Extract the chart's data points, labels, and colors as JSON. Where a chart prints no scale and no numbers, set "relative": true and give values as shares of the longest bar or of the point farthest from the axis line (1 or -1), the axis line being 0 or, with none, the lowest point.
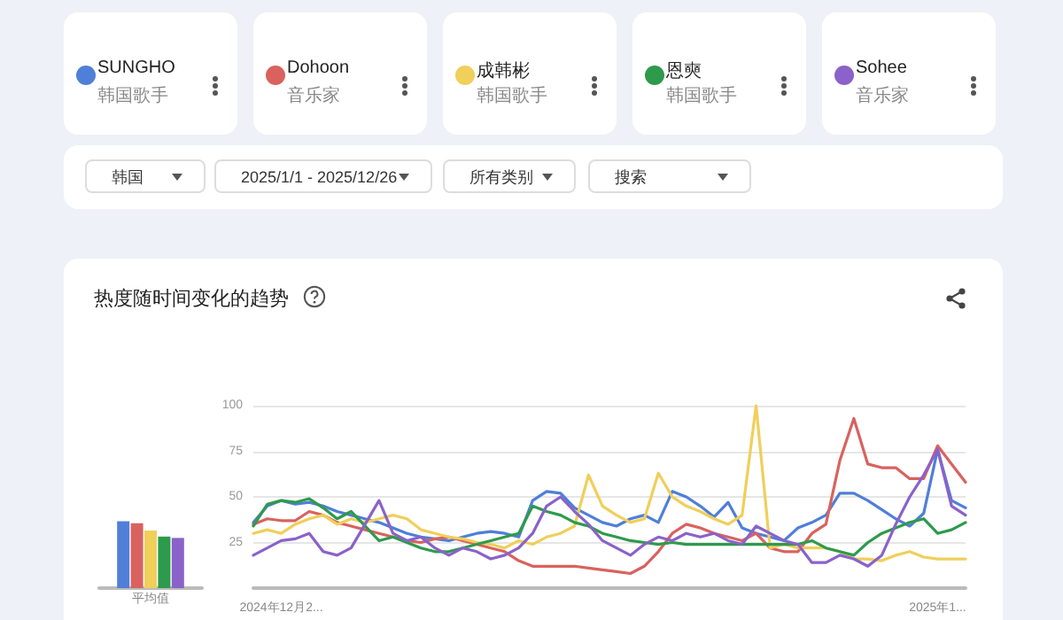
{
  "chart_data": [
    {
      "type": "line",
      "title": "热度随时间变化的趋势",
      "categories": [
        null,
        null,
        "2024年12月2...",
        null,
        null,
        null,
        null,
        null,
        null,
        null,
        null,
        null,
        null,
        null,
        null,
        null,
        null,
        null,
        null,
        null,
        null,
        null,
        null,
        null,
        null,
        null,
        null,
        null,
        null,
        null,
        null,
        null,
        null,
        null,
        null,
        null,
        null,
        null,
        null,
        null,
        null,
        null,
        null,
        null,
        null,
        null,
        null,
        null,
        null,
        "2025年1...",
        null,
        null
      ],
      "series": [
        {
          "name": "SUNGHO",
          "color": "#4f7fd8",
          "values": [
            36,
            45,
            48,
            46,
            47,
            45,
            42,
            40,
            38,
            36,
            33,
            30,
            28,
            27,
            26,
            28,
            30,
            31,
            30,
            28,
            48,
            53,
            52,
            44,
            40,
            36,
            34,
            38,
            40,
            36,
            53,
            50,
            45,
            39,
            47,
            33,
            30,
            28,
            26,
            33,
            36,
            40,
            52,
            52,
            48,
            43,
            38,
            34,
            41,
            76,
            48,
            44
          ]
        },
        {
          "name": "Dohoon",
          "color": "#d9625e",
          "values": [
            35,
            38,
            37,
            37,
            42,
            40,
            36,
            34,
            32,
            30,
            28,
            26,
            25,
            27,
            28,
            26,
            24,
            22,
            20,
            15,
            12,
            12,
            12,
            12,
            11,
            10,
            9,
            8,
            12,
            20,
            30,
            35,
            33,
            30,
            28,
            26,
            30,
            22,
            20,
            20,
            30,
            35,
            70,
            93,
            68,
            66,
            66,
            60,
            60,
            78,
            68,
            58
          ]
        },
        {
          "name": "成韩彬",
          "color": "#f0cf5a",
          "values": [
            30,
            32,
            30,
            35,
            38,
            40,
            35,
            38,
            36,
            38,
            40,
            38,
            32,
            30,
            28,
            27,
            25,
            24,
            22,
            26,
            24,
            28,
            30,
            34,
            62,
            45,
            40,
            36,
            38,
            63,
            50,
            45,
            42,
            38,
            35,
            40,
            100,
            22,
            24,
            22,
            22,
            22,
            20,
            16,
            16,
            15,
            18,
            20,
            17,
            16,
            16,
            16
          ]
        },
        {
          "name": "恩奭",
          "color": "#2e9a4c",
          "values": [
            34,
            46,
            48,
            47,
            49,
            44,
            38,
            42,
            34,
            26,
            28,
            25,
            22,
            20,
            20,
            22,
            24,
            26,
            28,
            30,
            45,
            42,
            40,
            36,
            34,
            30,
            28,
            26,
            25,
            24,
            25,
            24,
            24,
            24,
            24,
            24,
            24,
            24,
            24,
            24,
            26,
            22,
            20,
            18,
            25,
            30,
            33,
            36,
            38,
            30,
            32,
            36
          ]
        },
        {
          "name": "Sohee",
          "color": "#8a62c9",
          "values": [
            18,
            22,
            26,
            27,
            30,
            20,
            18,
            22,
            35,
            48,
            30,
            26,
            28,
            22,
            18,
            22,
            20,
            16,
            18,
            22,
            30,
            45,
            50,
            42,
            35,
            26,
            22,
            18,
            24,
            28,
            26,
            30,
            28,
            30,
            26,
            24,
            34,
            30,
            26,
            24,
            14,
            14,
            18,
            16,
            12,
            18,
            35,
            50,
            62,
            76,
            45,
            40
          ]
        }
      ],
      "ylim": [
        0,
        100
      ],
      "yticks": [
        25,
        50,
        75,
        100
      ],
      "grid": "y",
      "legend": "top",
      "marker": "none",
      "line_style": "solid",
      "annotations": [
        "韩国歌手",
        "音乐家",
        "韩国歌手",
        "韩国歌手",
        "音乐家",
        "韩国",
        "2025/1/1 - 2025/12/26",
        "所有类别",
        "搜索"
      ]
    },
    {
      "type": "bar",
      "relative": true,
      "categories": [
        "平均值"
      ],
      "series": [
        {
          "color": "#4f7fd8",
          "values": [
            1
          ]
        },
        {
          "color": "#d9625e",
          "values": [
            0.97
          ]
        },
        {
          "color": "#f0cf5a",
          "values": [
            0.86
          ]
        },
        {
          "color": "#2e9a4c",
          "values": [
            0.77
          ]
        },
        {
          "color": "#8a62c9",
          "values": [
            0.75
          ]
        }
      ]
    }
  ]
}
